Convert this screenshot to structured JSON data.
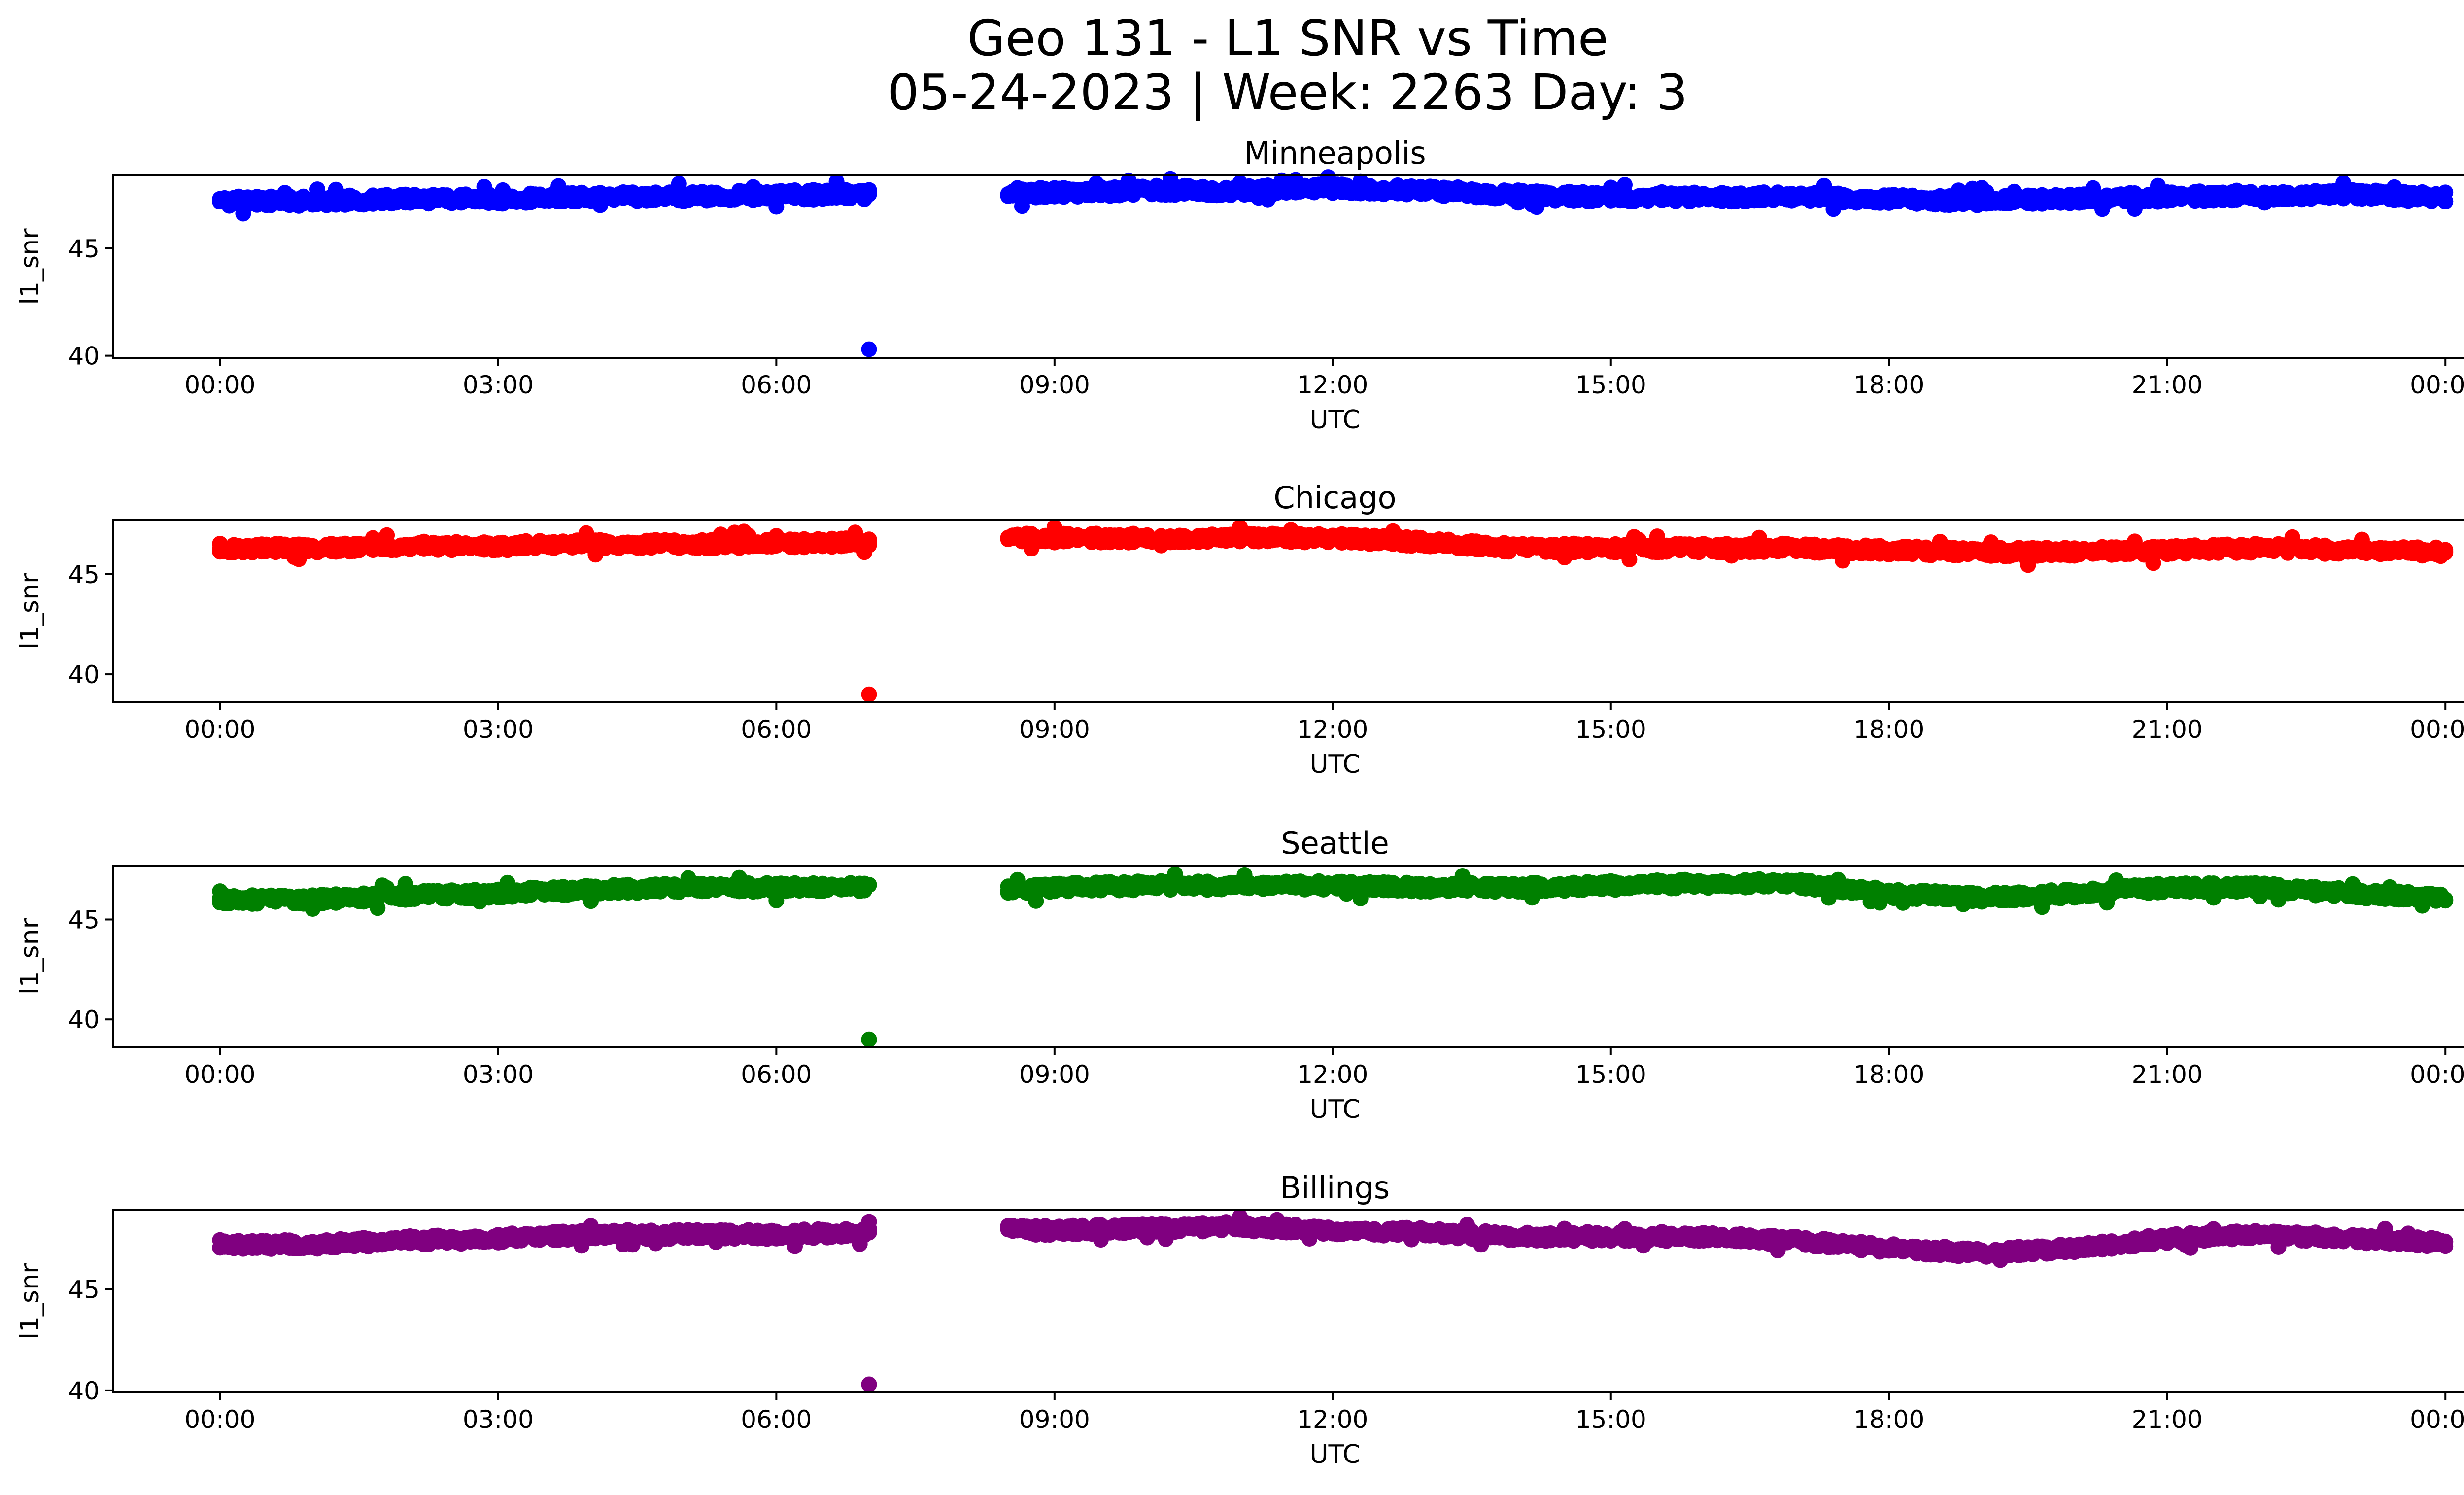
{
  "title_line1": "Geo 131 - L1 SNR vs Time",
  "title_line2": "05-24-2023 | Week: 2263 Day: 3",
  "chart_data": [
    {
      "type": "scatter",
      "title": "Minneapolis",
      "xlabel": "UTC",
      "ylabel": "l1_snr",
      "color": "#0000ff",
      "x_ticks": [
        "00:00",
        "03:00",
        "06:00",
        "09:00",
        "12:00",
        "15:00",
        "18:00",
        "21:00",
        "00:00"
      ],
      "y_ticks": [
        40,
        45
      ],
      "xlim_hours": [
        -1.15,
        25.2
      ],
      "ylim": [
        39.9,
        48.4
      ],
      "gap_hours": [
        7.0,
        8.5
      ],
      "outlier": {
        "time": "07:00",
        "value": 40.3
      },
      "series": [
        {
          "start": "00:00",
          "end": "07:00",
          "points": [
            [
              "00:00",
              47.2
            ],
            [
              "01:00",
              47.2
            ],
            [
              "02:00",
              47.3
            ],
            [
              "03:00",
              47.3
            ],
            [
              "04:00",
              47.4
            ],
            [
              "05:00",
              47.4
            ],
            [
              "06:00",
              47.5
            ],
            [
              "07:00",
              47.5
            ]
          ]
        },
        {
          "start": "08:30",
          "end": "24:00",
          "points": [
            [
              "08:30",
              47.6
            ],
            [
              "09:00",
              47.6
            ],
            [
              "10:00",
              47.7
            ],
            [
              "11:00",
              47.7
            ],
            [
              "12:00",
              47.8
            ],
            [
              "13:00",
              47.7
            ],
            [
              "14:00",
              47.5
            ],
            [
              "15:00",
              47.4
            ],
            [
              "16:00",
              47.4
            ],
            [
              "17:00",
              47.4
            ],
            [
              "18:00",
              47.3
            ],
            [
              "19:00",
              47.2
            ],
            [
              "20:00",
              47.3
            ],
            [
              "21:00",
              47.4
            ],
            [
              "22:00",
              47.5
            ],
            [
              "23:00",
              47.5
            ],
            [
              "24:00",
              47.4
            ]
          ]
        }
      ]
    },
    {
      "type": "scatter",
      "title": "Chicago",
      "xlabel": "UTC",
      "ylabel": "l1_snr",
      "color": "#ff0000",
      "x_ticks": [
        "00:00",
        "03:00",
        "06:00",
        "09:00",
        "12:00",
        "15:00",
        "18:00",
        "21:00",
        "00:00"
      ],
      "y_ticks": [
        40,
        45
      ],
      "xlim_hours": [
        -1.15,
        25.2
      ],
      "ylim": [
        38.6,
        47.7
      ],
      "gap_hours": [
        7.0,
        8.5
      ],
      "outlier": {
        "time": "07:00",
        "value": 39.0
      },
      "series": [
        {
          "start": "00:00",
          "end": "07:00",
          "points": [
            [
              "00:00",
              46.3
            ],
            [
              "01:00",
              46.3
            ],
            [
              "02:00",
              46.4
            ],
            [
              "03:00",
              46.4
            ],
            [
              "04:00",
              46.5
            ],
            [
              "05:00",
              46.5
            ],
            [
              "06:00",
              46.5
            ],
            [
              "07:00",
              46.6
            ]
          ]
        },
        {
          "start": "08:30",
          "end": "24:00",
          "points": [
            [
              "08:30",
              46.8
            ],
            [
              "09:00",
              46.8
            ],
            [
              "10:00",
              46.8
            ],
            [
              "11:00",
              46.8
            ],
            [
              "12:00",
              46.8
            ],
            [
              "13:00",
              46.6
            ],
            [
              "14:00",
              46.3
            ],
            [
              "15:00",
              46.3
            ],
            [
              "16:00",
              46.3
            ],
            [
              "17:00",
              46.3
            ],
            [
              "18:00",
              46.2
            ],
            [
              "19:00",
              46.1
            ],
            [
              "20:00",
              46.1
            ],
            [
              "21:00",
              46.2
            ],
            [
              "22:00",
              46.3
            ],
            [
              "23:00",
              46.2
            ],
            [
              "24:00",
              46.1
            ]
          ]
        }
      ]
    },
    {
      "type": "scatter",
      "title": "Seattle",
      "xlabel": "UTC",
      "ylabel": "l1_snr",
      "color": "#008000",
      "x_ticks": [
        "00:00",
        "03:00",
        "06:00",
        "09:00",
        "12:00",
        "15:00",
        "18:00",
        "21:00",
        "00:00"
      ],
      "y_ticks": [
        40,
        45
      ],
      "xlim_hours": [
        -1.15,
        25.2
      ],
      "ylim": [
        38.6,
        47.7
      ],
      "gap_hours": [
        7.0,
        8.5
      ],
      "outlier": {
        "time": "07:00",
        "value": 39.0
      },
      "series": [
        {
          "start": "00:00",
          "end": "07:00",
          "points": [
            [
              "00:00",
              46.0
            ],
            [
              "01:00",
              46.0
            ],
            [
              "02:00",
              46.2
            ],
            [
              "03:00",
              46.3
            ],
            [
              "04:00",
              46.5
            ],
            [
              "05:00",
              46.6
            ],
            [
              "06:00",
              46.6
            ],
            [
              "07:00",
              46.6
            ]
          ]
        },
        {
          "start": "08:30",
          "end": "24:00",
          "points": [
            [
              "08:30",
              46.5
            ],
            [
              "09:00",
              46.6
            ],
            [
              "10:00",
              46.7
            ],
            [
              "11:00",
              46.7
            ],
            [
              "12:00",
              46.7
            ],
            [
              "13:00",
              46.6
            ],
            [
              "14:00",
              46.6
            ],
            [
              "15:00",
              46.7
            ],
            [
              "16:00",
              46.8
            ],
            [
              "17:00",
              46.8
            ],
            [
              "18:00",
              46.3
            ],
            [
              "19:00",
              46.1
            ],
            [
              "20:00",
              46.3
            ],
            [
              "21:00",
              46.6
            ],
            [
              "22:00",
              46.6
            ],
            [
              "23:00",
              46.3
            ],
            [
              "24:00",
              46.1
            ]
          ]
        }
      ]
    },
    {
      "type": "scatter",
      "title": "Billings",
      "xlabel": "UTC",
      "ylabel": "l1_snr",
      "color": "#800080",
      "x_ticks": [
        "00:00",
        "03:00",
        "06:00",
        "09:00",
        "12:00",
        "15:00",
        "18:00",
        "21:00",
        "00:00"
      ],
      "y_ticks": [
        40,
        45
      ],
      "xlim_hours": [
        -1.15,
        25.2
      ],
      "ylim": [
        39.9,
        48.9
      ],
      "gap_hours": [
        7.0,
        8.5
      ],
      "outlier": {
        "time": "07:00",
        "value": 40.3
      },
      "series": [
        {
          "start": "00:00",
          "end": "07:00",
          "points": [
            [
              "00:00",
              47.2
            ],
            [
              "01:00",
              47.2
            ],
            [
              "02:00",
              47.4
            ],
            [
              "03:00",
              47.5
            ],
            [
              "04:00",
              47.7
            ],
            [
              "05:00",
              47.7
            ],
            [
              "06:00",
              47.7
            ],
            [
              "07:00",
              47.8
            ]
          ]
        },
        {
          "start": "08:30",
          "end": "24:00",
          "points": [
            [
              "08:30",
              47.9
            ],
            [
              "09:00",
              47.9
            ],
            [
              "10:00",
              48.0
            ],
            [
              "11:00",
              48.1
            ],
            [
              "12:00",
              47.9
            ],
            [
              "13:00",
              47.8
            ],
            [
              "14:00",
              47.6
            ],
            [
              "15:00",
              47.6
            ],
            [
              "16:00",
              47.6
            ],
            [
              "17:00",
              47.4
            ],
            [
              "18:00",
              47.0
            ],
            [
              "19:00",
              46.8
            ],
            [
              "20:00",
              47.0
            ],
            [
              "21:00",
              47.5
            ],
            [
              "22:00",
              47.7
            ],
            [
              "23:00",
              47.5
            ],
            [
              "24:00",
              47.3
            ]
          ]
        }
      ]
    }
  ]
}
